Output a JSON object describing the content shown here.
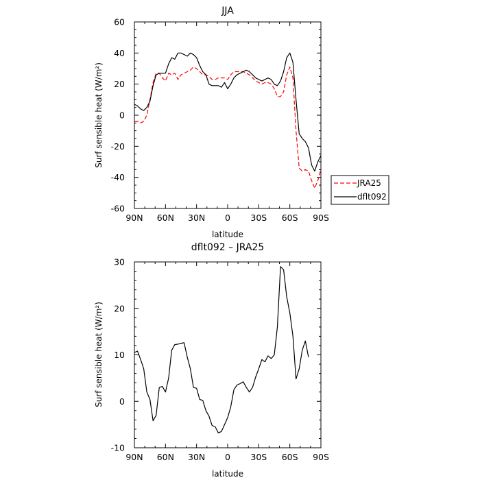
{
  "chart_data": [
    {
      "type": "line",
      "title": "JJA",
      "xlabel": "latitude",
      "ylabel": "Surf sensible heat (W/m²)",
      "xlim": [
        90,
        -90
      ],
      "ylim": [
        -60,
        60
      ],
      "x_ticks": [
        {
          "value": 90,
          "label": "90N"
        },
        {
          "value": 60,
          "label": "60N"
        },
        {
          "value": 30,
          "label": "30N"
        },
        {
          "value": 0,
          "label": "0"
        },
        {
          "value": -30,
          "label": "30S"
        },
        {
          "value": -60,
          "label": "60S"
        },
        {
          "value": -90,
          "label": "90S"
        }
      ],
      "y_ticks": [
        {
          "value": 60,
          "label": "60"
        },
        {
          "value": 40,
          "label": "40"
        },
        {
          "value": 20,
          "label": "20"
        },
        {
          "value": 0,
          "label": "0"
        },
        {
          "value": -20,
          "label": "-20"
        },
        {
          "value": -40,
          "label": "-40"
        },
        {
          "value": -60,
          "label": "-60"
        }
      ],
      "legend_position": "right",
      "series": [
        {
          "name": "JRA25",
          "color": "#ff0000",
          "dash": "dashed",
          "points": [
            [
              90,
              -4
            ],
            [
              87,
              -4
            ],
            [
              84,
              -5
            ],
            [
              81,
              -4
            ],
            [
              78,
              0
            ],
            [
              75,
              10
            ],
            [
              72,
              21
            ],
            [
              69,
              27
            ],
            [
              66,
              27
            ],
            [
              63,
              24
            ],
            [
              60,
              22
            ],
            [
              57,
              27
            ],
            [
              54,
              26
            ],
            [
              51,
              27
            ],
            [
              48,
              23
            ],
            [
              45,
              26
            ],
            [
              42,
              27
            ],
            [
              39,
              28
            ],
            [
              36,
              29
            ],
            [
              33,
              31
            ],
            [
              30,
              30
            ],
            [
              27,
              28
            ],
            [
              24,
              26
            ],
            [
              21,
              26
            ],
            [
              18,
              25
            ],
            [
              15,
              23
            ],
            [
              12,
              23
            ],
            [
              9,
              24
            ],
            [
              6,
              24
            ],
            [
              3,
              24
            ],
            [
              0,
              23
            ],
            [
              -3,
              26
            ],
            [
              -6,
              28
            ],
            [
              -9,
              28
            ],
            [
              -12,
              28
            ],
            [
              -15,
              28
            ],
            [
              -18,
              27
            ],
            [
              -21,
              26
            ],
            [
              -24,
              24
            ],
            [
              -27,
              22
            ],
            [
              -30,
              21
            ],
            [
              -33,
              20
            ],
            [
              -36,
              21
            ],
            [
              -39,
              21
            ],
            [
              -42,
              20
            ],
            [
              -45,
              17
            ],
            [
              -48,
              12
            ],
            [
              -51,
              12
            ],
            [
              -54,
              15
            ],
            [
              -57,
              26
            ],
            [
              -60,
              31
            ],
            [
              -63,
              24
            ],
            [
              -66,
              -10
            ],
            [
              -69,
              -34
            ],
            [
              -72,
              -36
            ],
            [
              -75,
              -35
            ],
            [
              -78,
              -36
            ],
            [
              -81,
              -42
            ],
            [
              -84,
              -47
            ],
            [
              -87,
              -42
            ],
            [
              -90,
              -35
            ]
          ]
        },
        {
          "name": "dflt092",
          "color": "#000000",
          "dash": "solid",
          "points": [
            [
              90,
              7
            ],
            [
              87,
              6
            ],
            [
              84,
              4
            ],
            [
              81,
              3
            ],
            [
              78,
              5
            ],
            [
              75,
              9
            ],
            [
              72,
              19
            ],
            [
              69,
              26
            ],
            [
              66,
              27
            ],
            [
              63,
              27
            ],
            [
              60,
              27
            ],
            [
              57,
              33
            ],
            [
              54,
              37
            ],
            [
              51,
              36
            ],
            [
              48,
              40
            ],
            [
              45,
              40
            ],
            [
              42,
              39
            ],
            [
              39,
              38
            ],
            [
              36,
              40
            ],
            [
              33,
              39
            ],
            [
              30,
              37
            ],
            [
              27,
              32
            ],
            [
              24,
              28
            ],
            [
              21,
              26
            ],
            [
              18,
              20
            ],
            [
              15,
              19
            ],
            [
              12,
              19
            ],
            [
              9,
              19
            ],
            [
              6,
              18
            ],
            [
              3,
              21
            ],
            [
              0,
              17
            ],
            [
              -3,
              20
            ],
            [
              -6,
              24
            ],
            [
              -9,
              26
            ],
            [
              -12,
              27
            ],
            [
              -15,
              28
            ],
            [
              -18,
              29
            ],
            [
              -21,
              28
            ],
            [
              -24,
              26
            ],
            [
              -27,
              24
            ],
            [
              -30,
              23
            ],
            [
              -33,
              22
            ],
            [
              -36,
              23
            ],
            [
              -39,
              24
            ],
            [
              -42,
              23
            ],
            [
              -45,
              20
            ],
            [
              -48,
              19
            ],
            [
              -51,
              22
            ],
            [
              -54,
              28
            ],
            [
              -57,
              37
            ],
            [
              -60,
              40
            ],
            [
              -63,
              34
            ],
            [
              -66,
              10
            ],
            [
              -69,
              -12
            ],
            [
              -72,
              -15
            ],
            [
              -75,
              -17
            ],
            [
              -78,
              -21
            ],
            [
              -81,
              -32
            ],
            [
              -84,
              -36
            ],
            [
              -87,
              -30
            ],
            [
              -90,
              -26
            ]
          ]
        }
      ]
    },
    {
      "type": "line",
      "title": "dflt092 – JRA25",
      "xlabel": "latitude",
      "ylabel": "Surf sensible heat (W/m²)",
      "xlim": [
        90,
        -90
      ],
      "ylim": [
        -10,
        30
      ],
      "x_ticks": [
        {
          "value": 90,
          "label": "90N"
        },
        {
          "value": 60,
          "label": "60N"
        },
        {
          "value": 30,
          "label": "30N"
        },
        {
          "value": 0,
          "label": "0"
        },
        {
          "value": -30,
          "label": "30S"
        },
        {
          "value": -60,
          "label": "60S"
        },
        {
          "value": -90,
          "label": "90S"
        }
      ],
      "y_ticks": [
        {
          "value": 30,
          "label": "30"
        },
        {
          "value": 20,
          "label": "20"
        },
        {
          "value": 10,
          "label": "10"
        },
        {
          "value": 0,
          "label": "0"
        },
        {
          "value": -10,
          "label": "-10"
        }
      ],
      "series": [
        {
          "color": "#000000",
          "dash": "solid",
          "points": [
            [
              90,
              10.5
            ],
            [
              87,
              10.8
            ],
            [
              84,
              9
            ],
            [
              81,
              7
            ],
            [
              78,
              2
            ],
            [
              75,
              0.4
            ],
            [
              72,
              -4.2
            ],
            [
              69,
              -3
            ],
            [
              66,
              3
            ],
            [
              63,
              3.2
            ],
            [
              60,
              2
            ],
            [
              57,
              5
            ],
            [
              54,
              11
            ],
            [
              51,
              12.2
            ],
            [
              48,
              12.3
            ],
            [
              45,
              12.5
            ],
            [
              42,
              12.6
            ],
            [
              39,
              9.5
            ],
            [
              36,
              7
            ],
            [
              33,
              3
            ],
            [
              30,
              2.8
            ],
            [
              27,
              0.4
            ],
            [
              24,
              0.2
            ],
            [
              21,
              -2
            ],
            [
              18,
              -3.2
            ],
            [
              15,
              -5.2
            ],
            [
              12,
              -5.5
            ],
            [
              9,
              -6.8
            ],
            [
              6,
              -6.5
            ],
            [
              3,
              -5
            ],
            [
              0,
              -3.5
            ],
            [
              -3,
              -1.2
            ],
            [
              -6,
              2.5
            ],
            [
              -9,
              3.5
            ],
            [
              -12,
              3.8
            ],
            [
              -15,
              4.2
            ],
            [
              -18,
              3
            ],
            [
              -21,
              2
            ],
            [
              -24,
              3
            ],
            [
              -27,
              5.2
            ],
            [
              -30,
              7
            ],
            [
              -33,
              9
            ],
            [
              -36,
              8.5
            ],
            [
              -39,
              9.8
            ],
            [
              -42,
              9.2
            ],
            [
              -45,
              10
            ],
            [
              -48,
              16
            ],
            [
              -51,
              29
            ],
            [
              -54,
              28.3
            ],
            [
              -57,
              22.5
            ],
            [
              -60,
              19
            ],
            [
              -63,
              14
            ],
            [
              -66,
              4.8
            ],
            [
              -69,
              7
            ],
            [
              -72,
              11
            ],
            [
              -75,
              13
            ],
            [
              -78,
              9.5
            ]
          ]
        }
      ]
    }
  ]
}
